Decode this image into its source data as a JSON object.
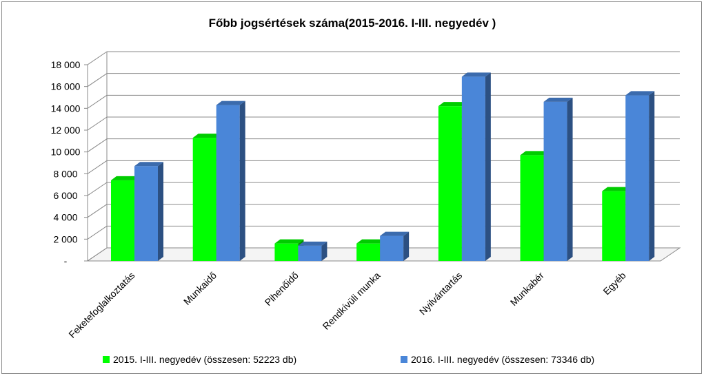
{
  "chart_data": {
    "type": "bar",
    "title": "Főbb jogsértések száma(2015-2016. I-III. negyedév )",
    "categories": [
      "Feketefoglalkoztatás",
      "Munkaidő",
      "Pihenőidő",
      "Rendkívüli munka",
      "Nyilvántartás",
      "Munkabér",
      "Egyéb"
    ],
    "series": [
      {
        "name": "2015. I-III. negyedév (összesen: 52223 db)",
        "color": "#00ff00",
        "values": [
          7400,
          11300,
          1600,
          1600,
          14200,
          9700,
          6400
        ]
      },
      {
        "name": "2016. I-III. negyedév (összesen: 73346 db)",
        "color": "#4a86d8",
        "values": [
          8700,
          14300,
          1400,
          2300,
          16900,
          14600,
          15200
        ]
      }
    ],
    "ylim": [
      0,
      18000
    ],
    "yticks": [
      "-",
      "2 000",
      "4 000",
      "6 000",
      "8 000",
      "10 000",
      "12 000",
      "14 000",
      "16 000",
      "18 000"
    ],
    "grid": true,
    "legend_position": "bottom"
  }
}
